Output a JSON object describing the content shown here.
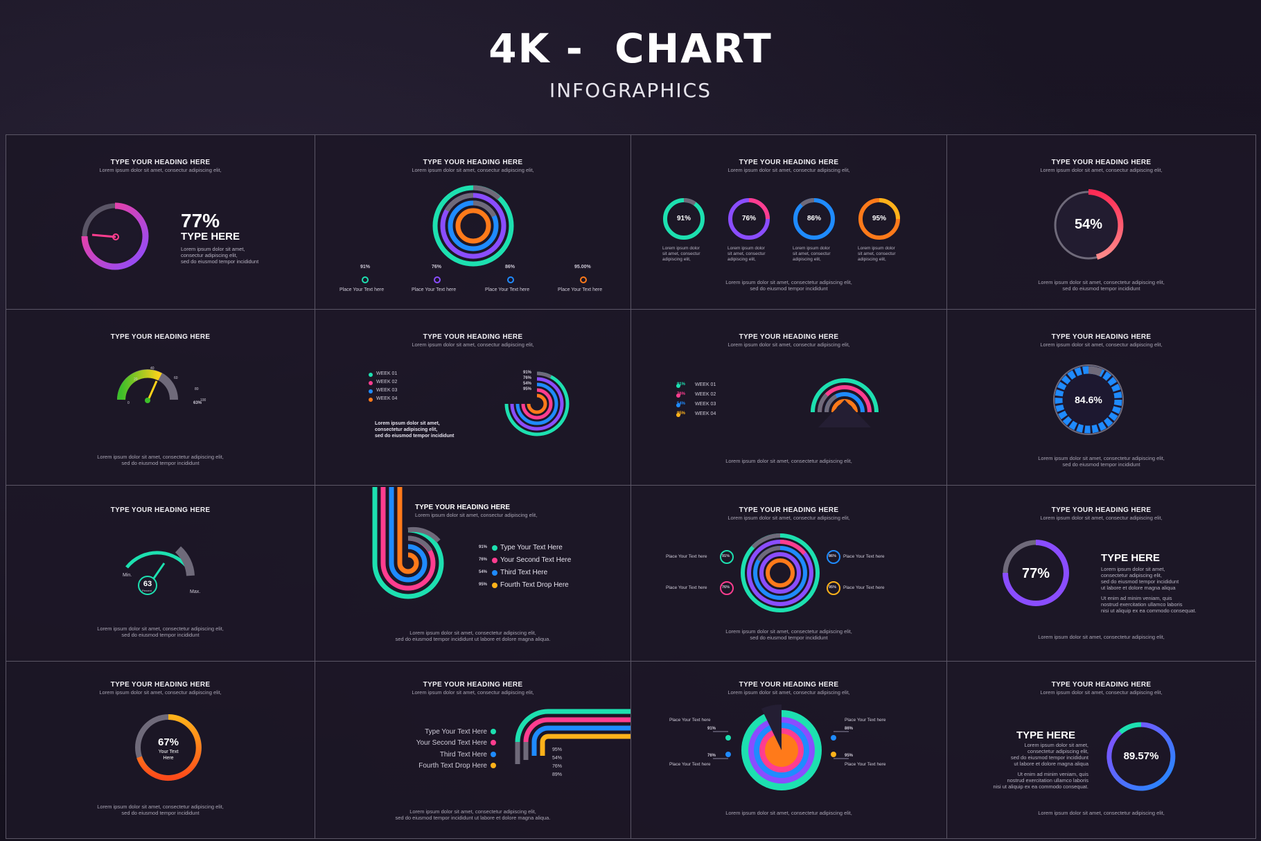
{
  "header": {
    "title": "4K -  CHART",
    "subtitle": "INFOGRAPHICS"
  },
  "common": {
    "heading": "TYPE YOUR HEADING HERE",
    "sub": "Lorem ipsum dolor sit amet, consectur adipiscing elit,",
    "foot1": "Lorem ipsum dolor sit amet, consectetur adipiscing elit,",
    "foot2": "sed do eiusmod tempor incididunt",
    "foot_long2": "sed do eiusmod tempor incididunt ut labore et dolore magna aliqua.",
    "place": "Place Your Text here",
    "lorem3": "Lorem ipsum dolor sit amet, consectur adipiscing elit,",
    "lorem_short_a": "Lorem ipsum dolor",
    "lorem_short_b": "sit amet, consectur",
    "lorem_short_c": "adipiscing elit,"
  },
  "c1": {
    "value": "77%",
    "label": "TYPE HERE",
    "d1": "Lorem ipsum dolor sit amet,",
    "d2": "consectur adipiscing elit,",
    "d3": "sed do eiusmod tempor incididunt"
  },
  "c2": {
    "values": [
      "91%",
      "76%",
      "86%",
      "95.00%"
    ]
  },
  "c3": {
    "values": [
      "91%",
      "76%",
      "86%",
      "95%"
    ]
  },
  "c4": {
    "value": "54%"
  },
  "c5": {
    "ticks": [
      "0",
      "20",
      "40",
      "60",
      "80",
      "100"
    ],
    "value": "63%"
  },
  "c6": {
    "weeks": [
      "WEEK 01",
      "WEEK 02",
      "WEEK 03",
      "WEEK 04"
    ],
    "values": [
      "91%",
      "76%",
      "54%",
      "95%"
    ],
    "d1": "Lorem ipsum dolor sit amet,",
    "d2": "consectetur adipiscing elit,",
    "d3": "sed do eiusmod tempor incididunt"
  },
  "c7": {
    "weeks": [
      "WEEK 01",
      "WEEK 02",
      "WEEK 03",
      "WEEK 04"
    ],
    "values": [
      "91%",
      "76%",
      "54%",
      "95%"
    ]
  },
  "c8": {
    "value": "84.6%"
  },
  "c9": {
    "value": "63",
    "unit": "Percent",
    "min": "Min.",
    "max": "Max."
  },
  "c10": {
    "values": [
      "91%",
      "76%",
      "54%",
      "95%"
    ],
    "items": [
      "Type Your Text Here",
      "Your Second Text Here",
      "Third Text Here",
      "Fourth Text Drop Here"
    ]
  },
  "c11": {
    "values": [
      "91%",
      "86%",
      "76%",
      "95%"
    ]
  },
  "c12": {
    "value": "77%",
    "label": "TYPE HERE",
    "p1a": "Lorem ipsum dolor sit amet,",
    "p1b": "consectetur adipiscing elit,",
    "p1c": "sed do eiusmod tempor incididunt",
    "p1d": "ut labore et dolore magna aliqua",
    "p2a": "Ut enim ad minim veniam, quis",
    "p2b": "nostrud exercitation ullamco laboris",
    "p2c": "nisi ut aliquip ex ea commodo consequat."
  },
  "c13": {
    "value": "67%",
    "label1": "Your Text",
    "label2": "Here"
  },
  "c14": {
    "items": [
      "Type Your Text Here",
      "Your Second Text Here",
      "Third Text Here",
      "Fourth Text Drop Here"
    ],
    "values": [
      "95%",
      "54%",
      "76%",
      "89%"
    ]
  },
  "c15": {
    "values": [
      "91%",
      "86%",
      "76%",
      "95%"
    ]
  },
  "c16": {
    "value": "89.57%",
    "label": "TYPE HERE",
    "p1a": "Lorem ipsum dolor sit amet,",
    "p1b": "consectetur adipiscing elit,",
    "p1c": "sed do eiusmod tempor incididunt",
    "p1d": "ut labore et dolore magna aliqua",
    "p2a": "Ut enim ad minim veniam, quis",
    "p2b": "nostrud exercitation ullamco laboris",
    "p2c": "nisi ut aliquip ex ea commodo consequat."
  },
  "colors": {
    "teal": "#1de0b0",
    "pink": "#ff3d8f",
    "purple": "#8a4dff",
    "blue": "#1f8bff",
    "orange": "#ff7a1a",
    "yellow": "#ffb21a",
    "grey": "#6f6a7a"
  }
}
